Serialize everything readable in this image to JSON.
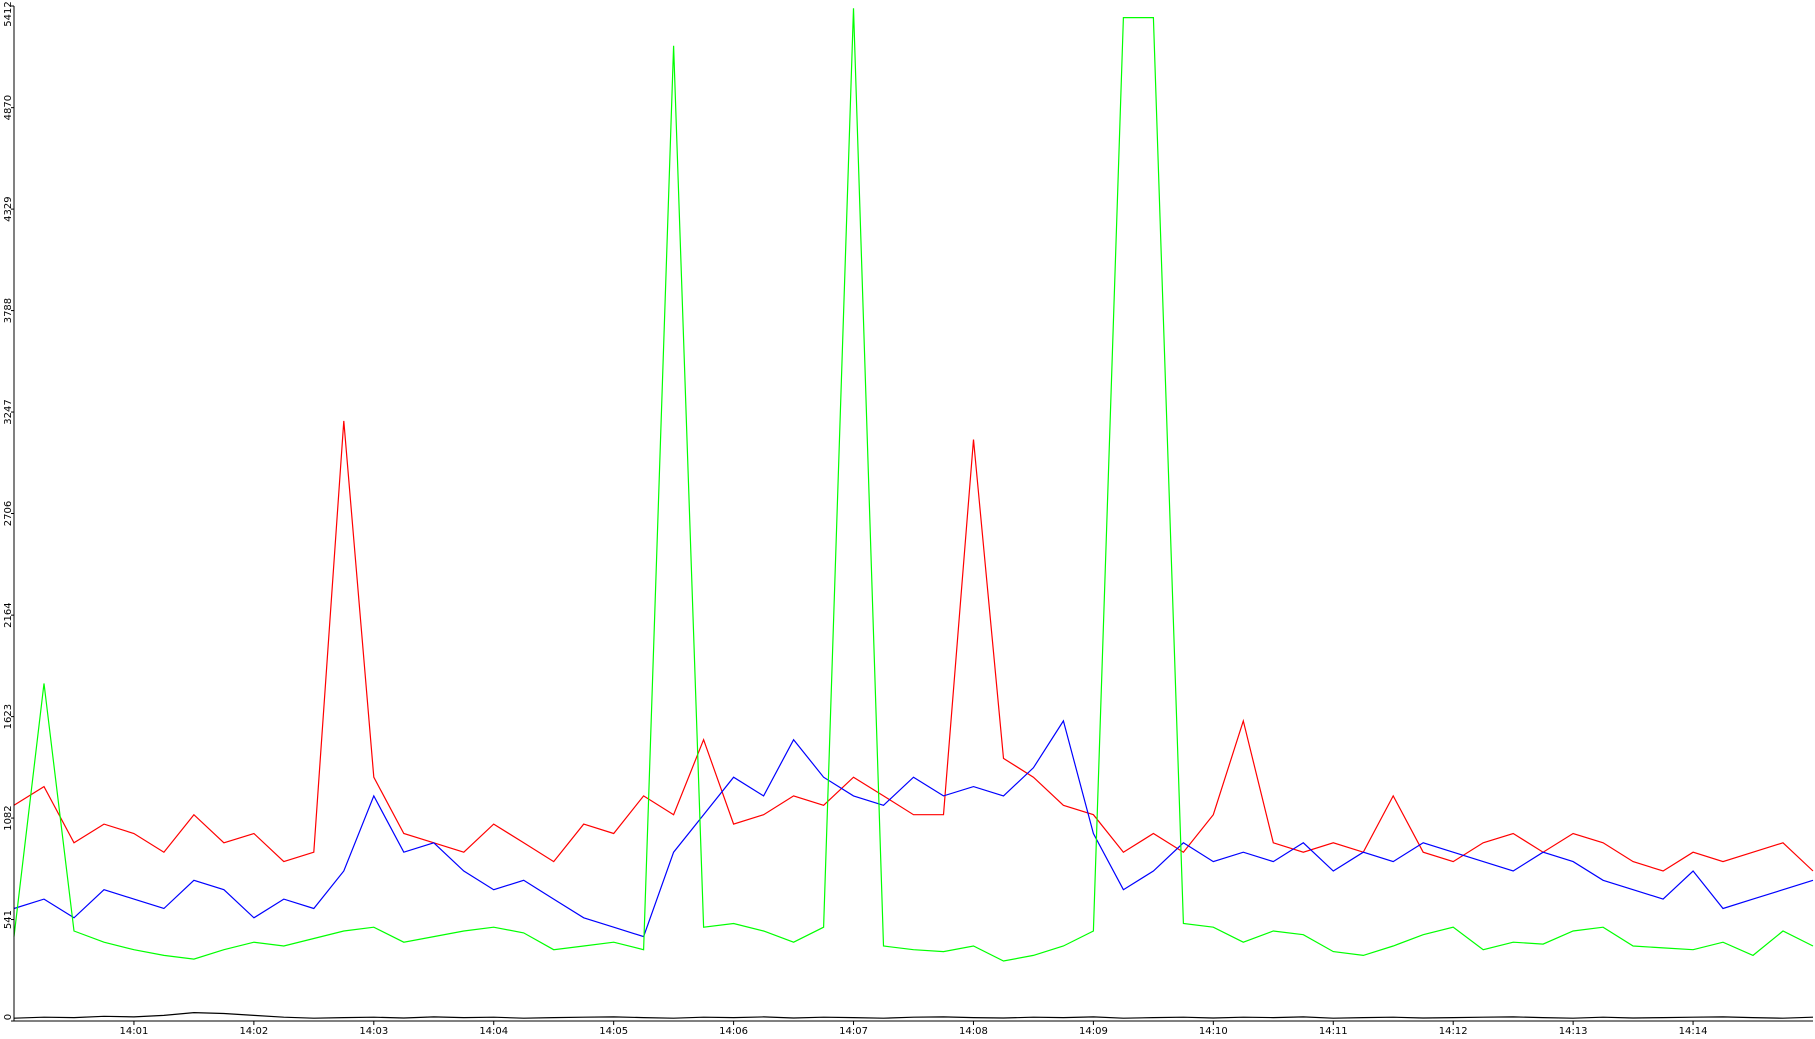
{
  "chart_data": {
    "type": "line",
    "categories": [
      null,
      null,
      null,
      null,
      "14:01",
      null,
      null,
      null,
      "14:02",
      null,
      null,
      null,
      "14:03",
      null,
      null,
      null,
      "14:04",
      null,
      null,
      null,
      "14:05",
      null,
      null,
      null,
      "14:06",
      null,
      null,
      null,
      "14:07",
      null,
      null,
      null,
      "14:08",
      null,
      null,
      null,
      "14:09",
      null,
      null,
      null,
      "14:10",
      null,
      null,
      null,
      "14:11",
      null,
      null,
      null,
      "14:12",
      null,
      null,
      null,
      "14:13",
      null,
      null,
      null,
      "14:14",
      null,
      null,
      null,
      null
    ],
    "series": [
      {
        "color": "#ff0000",
        "values": [
          1150,
          1250,
          950,
          1050,
          1000,
          900,
          1100,
          950,
          1000,
          850,
          900,
          3200,
          1300,
          1000,
          950,
          900,
          1050,
          950,
          850,
          1050,
          1000,
          1200,
          1100,
          1500,
          1050,
          1100,
          1200,
          1150,
          1300,
          1200,
          1100,
          1100,
          3100,
          1400,
          1300,
          1150,
          1100,
          900,
          1000,
          900,
          1100,
          1600,
          950,
          900,
          950,
          900,
          1200,
          900,
          850,
          950,
          1000,
          900,
          1000,
          950,
          850,
          800,
          900,
          850,
          900,
          950,
          800
        ]
      },
      {
        "color": "#0000ff",
        "values": [
          600,
          650,
          550,
          700,
          650,
          600,
          750,
          700,
          550,
          650,
          600,
          800,
          1200,
          900,
          950,
          800,
          700,
          750,
          650,
          550,
          500,
          450,
          900,
          1100,
          1300,
          1200,
          1500,
          1300,
          1200,
          1150,
          1300,
          1200,
          1250,
          1200,
          1350,
          1600,
          1000,
          700,
          800,
          950,
          850,
          900,
          850,
          950,
          800,
          900,
          850,
          950,
          900,
          850,
          800,
          900,
          850,
          750,
          700,
          650,
          800,
          600,
          650,
          700,
          750
        ]
      },
      {
        "color": "#00ff00",
        "values": [
          450,
          1800,
          480,
          420,
          380,
          350,
          330,
          380,
          420,
          400,
          440,
          480,
          500,
          420,
          450,
          480,
          500,
          470,
          380,
          400,
          420,
          380,
          5200,
          500,
          520,
          480,
          420,
          500,
          5400,
          400,
          380,
          370,
          400,
          320,
          350,
          400,
          480,
          5350,
          5350,
          520,
          500,
          420,
          480,
          460,
          370,
          350,
          400,
          460,
          500,
          380,
          420,
          410,
          480,
          500,
          400,
          390,
          380,
          420,
          350,
          480,
          400
        ]
      },
      {
        "color": "#000000",
        "values": [
          15,
          20,
          18,
          25,
          22,
          30,
          45,
          40,
          30,
          20,
          15,
          18,
          20,
          16,
          22,
          18,
          20,
          15,
          18,
          20,
          22,
          18,
          15,
          20,
          18,
          22,
          16,
          20,
          18,
          15,
          20,
          22,
          18,
          16,
          20,
          18,
          22,
          15,
          18,
          20,
          16,
          20,
          18,
          22,
          15,
          18,
          20,
          16,
          18,
          20,
          22,
          18,
          15,
          20,
          16,
          18,
          20,
          22,
          18,
          15,
          20
        ]
      }
    ],
    "ylim": [
      0,
      5412
    ],
    "yticks": [
      0,
      541,
      1082,
      1623,
      2164,
      2706,
      3247,
      3788,
      4329,
      4870,
      5412
    ],
    "grid": false
  }
}
